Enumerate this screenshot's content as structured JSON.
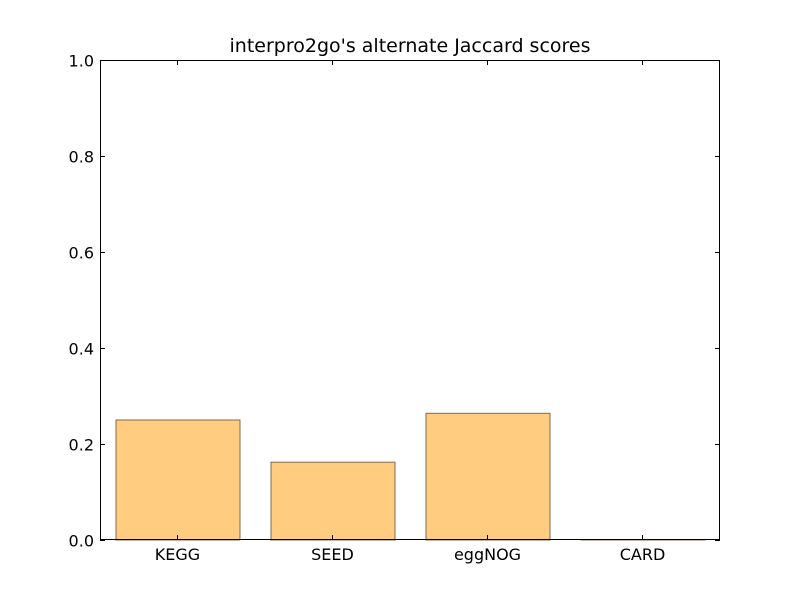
{
  "chart_data": {
    "type": "bar",
    "title": "interpro2go's alternate Jaccard scores",
    "categories": [
      "KEGG",
      "SEED",
      "eggNOG",
      "CARD"
    ],
    "values": [
      0.25,
      0.162,
      0.264,
      0.001
    ],
    "ylim": [
      0,
      1.0
    ],
    "yticks": [
      "0.0",
      "0.2",
      "0.4",
      "0.6",
      "0.8",
      "1.0"
    ],
    "ytick_values": [
      0,
      0.2,
      0.4,
      0.6,
      0.8,
      1.0
    ],
    "grid": false,
    "bar_color": "#ffcc80",
    "bar_edge_color": "#7f6a50"
  }
}
